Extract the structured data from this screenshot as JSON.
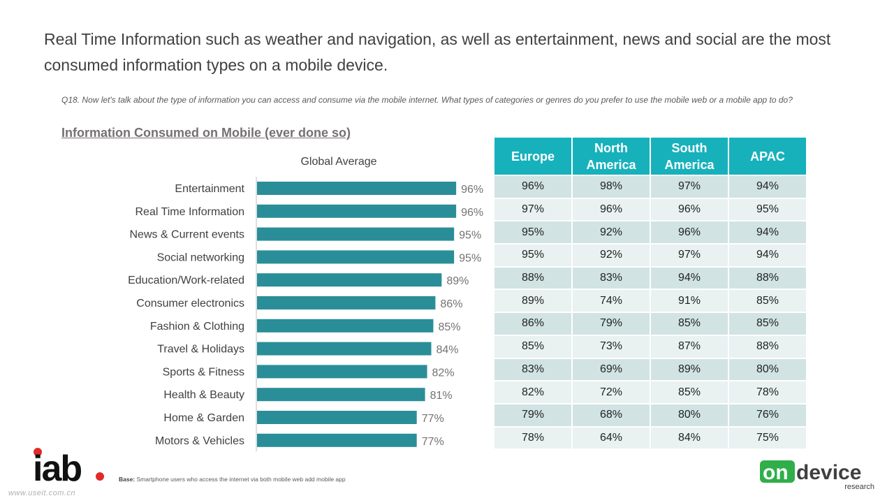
{
  "headline": "Real Time Information such as weather and navigation, as well as entertainment, news and social are the most consumed information types on a mobile device.",
  "question": "Q18. Now let's talk about the type of information you can access and consume via the mobile internet. What types of categories or genres do you prefer to use the mobile web or a mobile app to do?",
  "section_title": "Information Consumed on Mobile (ever done so)",
  "chart_data": {
    "type": "bar",
    "orientation": "horizontal",
    "title": "Global Average",
    "categories": [
      "Entertainment",
      "Real Time Information",
      "News & Current events",
      "Social networking",
      "Education/Work-related",
      "Consumer electronics",
      "Fashion & Clothing",
      "Travel & Holidays",
      "Sports & Fitness",
      "Health & Beauty",
      "Home & Garden",
      "Motors & Vehicles"
    ],
    "values": [
      96,
      96,
      95,
      95,
      89,
      86,
      85,
      84,
      82,
      81,
      77,
      77
    ],
    "value_labels": [
      "96%",
      "96%",
      "95%",
      "95%",
      "89%",
      "86%",
      "85%",
      "84%",
      "82%",
      "81%",
      "77%",
      "77%"
    ],
    "bar_color": "#2a8e98",
    "xlim": [
      0,
      100
    ]
  },
  "table": {
    "headers": [
      [
        "Europe"
      ],
      [
        "North",
        "America"
      ],
      [
        "South",
        "America"
      ],
      [
        "APAC"
      ]
    ],
    "rows": [
      [
        "96%",
        "98%",
        "97%",
        "94%"
      ],
      [
        "97%",
        "96%",
        "96%",
        "95%"
      ],
      [
        "95%",
        "92%",
        "96%",
        "94%"
      ],
      [
        "95%",
        "92%",
        "97%",
        "94%"
      ],
      [
        "88%",
        "83%",
        "94%",
        "88%"
      ],
      [
        "89%",
        "74%",
        "91%",
        "85%"
      ],
      [
        "86%",
        "79%",
        "85%",
        "85%"
      ],
      [
        "85%",
        "73%",
        "87%",
        "88%"
      ],
      [
        "83%",
        "69%",
        "89%",
        "80%"
      ],
      [
        "82%",
        "72%",
        "85%",
        "78%"
      ],
      [
        "79%",
        "68%",
        "80%",
        "76%"
      ],
      [
        "78%",
        "64%",
        "84%",
        "75%"
      ]
    ],
    "header_color": "#17b1bc",
    "row_colors": [
      "#d1e3e3",
      "#e9f1f1"
    ]
  },
  "footer": {
    "base_label": "Base:",
    "base_text": " Smartphone users who access the internet via both mobile web add mobile app",
    "iab_logo_text": "iab",
    "ondevice_logo": {
      "on": "on",
      "device": "device",
      "research": "research"
    },
    "watermark": "www.useit.com.cn"
  }
}
